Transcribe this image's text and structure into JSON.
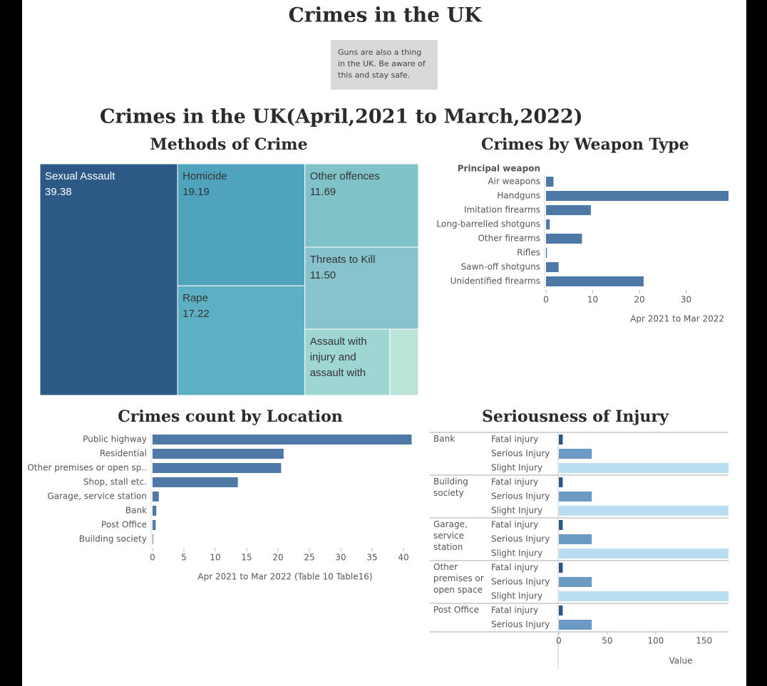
{
  "title": "Crimes in the UK",
  "note": "Guns are also a thing in the UK. Be aware of this and stay safe.",
  "subtitle": "Crimes in the UK(April,2021 to March,2022)",
  "chart_data": [
    {
      "type": "treemap",
      "title": "Methods of Crime",
      "categories": [
        "Sexual Assault",
        "Homicide",
        "Rape",
        "Other offences",
        "Threats to Kill",
        "Assault with injury and assault with",
        null
      ],
      "values": [
        39.38,
        19.19,
        17.22,
        11.69,
        11.5,
        6.95,
        2.34
      ],
      "value_labels": [
        "39.38",
        "19.19",
        "17.22",
        "11.69",
        "11.50",
        null,
        null
      ],
      "colors": [
        "#2c5985",
        "#4fa3bd",
        "#5db0c3",
        "#7fc3c9",
        "#86c3cd",
        "#9fd5d3",
        "#bce5da"
      ]
    },
    {
      "type": "hbar",
      "title": "Crimes by Weapon Type",
      "column_header": "Principal weapon",
      "x_label": "Apr 2021 to Mar 2022",
      "categories": [
        "Air weapons",
        "Handguns",
        "Imitation firearms",
        "Long-barrelled shotguns",
        "Other firearms",
        "Rifles",
        "Sawn-off shotguns",
        "Unidentified firearms"
      ],
      "values": [
        1.6,
        40,
        9.6,
        0.8,
        7.7,
        0.2,
        2.7,
        20.9
      ],
      "color": "#4e79a7",
      "xlim": [
        0,
        40
      ],
      "xticks": [
        0,
        10,
        20,
        30
      ]
    },
    {
      "type": "hbar",
      "title": "Crimes count by Location",
      "x_label": "Apr 2021 to Mar 2022 (Table 10 Table16)",
      "categories": [
        "Public highway",
        "Residential",
        "Other premises or open sp..",
        "Shop, stall etc.",
        "Garage, service station",
        "Bank",
        "Post Office",
        "Building society"
      ],
      "values": [
        41.3,
        20.9,
        20.5,
        13.6,
        1.0,
        0.6,
        0.5,
        0.1
      ],
      "color": "#4e79a7",
      "xlim": [
        0,
        42.5
      ],
      "xticks": [
        0,
        5,
        10,
        15,
        20,
        25,
        30,
        35,
        40
      ]
    },
    {
      "type": "grouped-hbar",
      "title": "Seriousness of Injury",
      "x_label": "Value",
      "categories": [
        "Bank",
        "Building society",
        "Garage, service station",
        "Other premises or open space",
        "Post Office"
      ],
      "series": [
        {
          "name": "Fatal injury",
          "color": "#2a5783",
          "values": [
            4,
            4,
            4,
            4,
            4
          ]
        },
        {
          "name": "Serious Injury",
          "color": "#6b9ac4",
          "values": [
            34,
            34,
            34,
            34,
            34
          ]
        },
        {
          "name": "Slight Injury",
          "color": "#b9ddf1",
          "values": [
            180,
            180,
            180,
            180,
            null
          ]
        }
      ],
      "xlim": [
        0,
        176
      ],
      "xticks": [
        0,
        50,
        100,
        150
      ]
    }
  ]
}
